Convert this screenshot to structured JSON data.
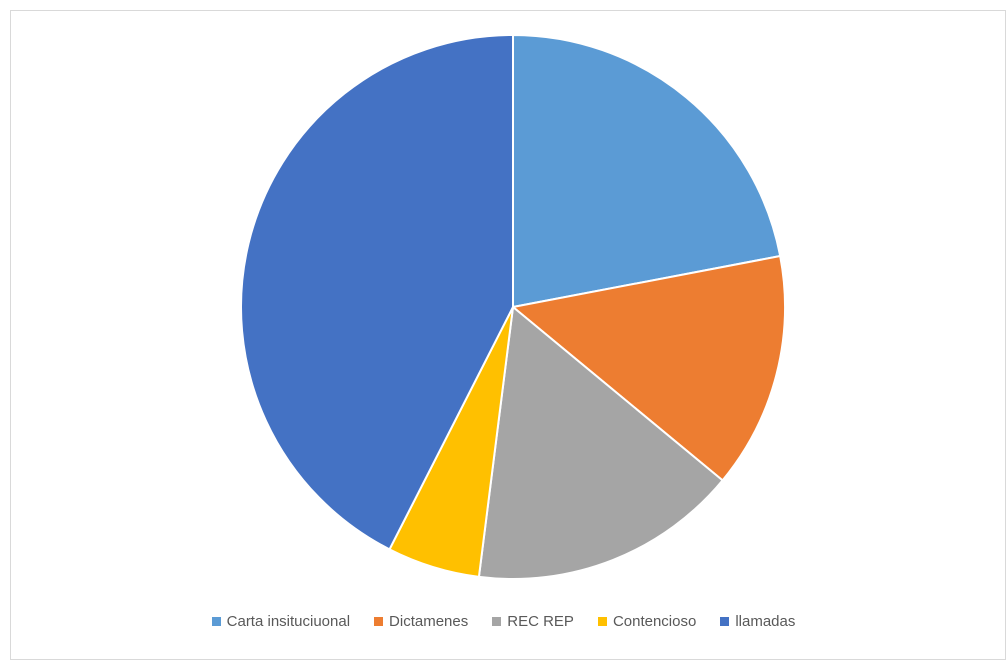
{
  "chart_data": {
    "type": "pie",
    "title": "",
    "categories": [
      "Carta insituciuonal",
      "Dictamenes",
      "REC REP",
      "Contencioso",
      "llamadas"
    ],
    "values": [
      22,
      14,
      16,
      5.5,
      42.5
    ],
    "colors": [
      "#5b9bd5",
      "#ed7d31",
      "#a5a5a5",
      "#ffc000",
      "#4472c4"
    ],
    "legend_position": "bottom",
    "start_angle": "12 o'clock",
    "direction": "clockwise"
  }
}
